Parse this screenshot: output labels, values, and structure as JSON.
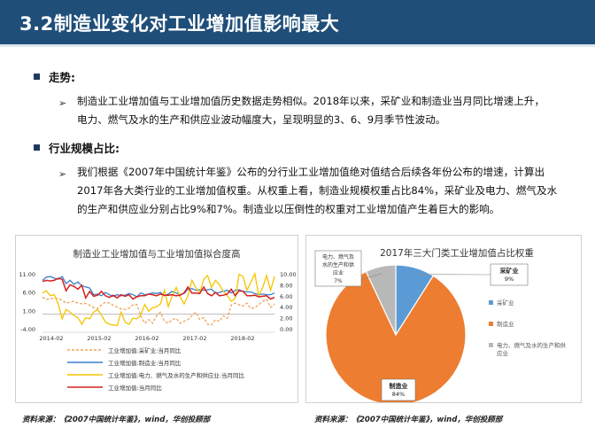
{
  "title": "3.2制造业变化对工业增加值影响最大",
  "sections": [
    {
      "heading": "走势",
      "colon": ":",
      "lines": [
        "制造业工业增加值与工业增加值历史数据走势相似。2018年以来，采矿业和制造业当月同比增速上升，",
        "电力、燃气及水的生产和供应业波动幅度大，呈现明显的3、6、9月季节性波动。"
      ]
    },
    {
      "heading": "行业规模占比",
      "colon": ":",
      "lines": [
        "我们根据《2007年中国统计年鉴》公布的分行业工业增加值绝对值结合后续各年份公布的增速，计算出",
        "2017年各大类行业的工业增加值权重。从权重上看，制造业规模权重占比84%，采矿业及电力、燃气及水",
        "的生产和供应业分别占比9%和7%。制造业以压倒性的权重对工业增加值产生着巨大的影响。"
      ]
    }
  ],
  "chart_data": [
    {
      "type": "line",
      "title": "制造业工业增加值与工业增加值拟合度高",
      "x_ticks": [
        "2014-02",
        "2015-02",
        "2016-02",
        "2017-02",
        "2018-02"
      ],
      "left_axis_ticks": [
        "11.00",
        "6.00",
        "1.00",
        "-4.00"
      ],
      "right_axis_ticks": [
        "10.00",
        "8.00",
        "6.00",
        "4.00",
        "2.00",
        "0.00"
      ],
      "left_ylim": [
        -4,
        11
      ],
      "right_ylim": [
        0,
        10
      ],
      "grid": false,
      "legend_position": "bottom",
      "colors": {
        "mining": "#f0a35a",
        "manufacturing": "#3c7fc9",
        "utilities": "#f5c400",
        "total": "#d62020"
      },
      "series": [
        {
          "name": "工业增加值:采矿业:当月同比",
          "key": "mining",
          "axis": "left",
          "dashed": true,
          "values": [
            4.6,
            4.0,
            4.2,
            4.4,
            4.2,
            3.8,
            3.0,
            3.2,
            3.5,
            3.0,
            2.8,
            2.9,
            2.4,
            1.8,
            1.5,
            2.5,
            3.2,
            3.0,
            2.4,
            1.9,
            1.4,
            1.2,
            1.6,
            2.5,
            2.6,
            -0.6,
            -2.5,
            -1.5,
            -2.5,
            -0.5,
            0.5,
            -2.0,
            -2.5,
            -1.5,
            -1.2,
            -2.5,
            -2.0,
            -1.5,
            -0.5,
            0.5,
            -1.5,
            -1.0,
            -2.8,
            -3.0,
            -1.5,
            -2.0,
            -0.5,
            -1.2,
            2.5,
            3.0,
            2.5,
            2.2,
            3.0,
            1.5,
            1.8,
            2.5,
            3.5,
            4.0,
            1.8,
            2.8
          ]
        },
        {
          "name": "工业增加值:制造业:当月同比",
          "key": "manufacturing",
          "axis": "right",
          "dashed": false,
          "values": [
            8.8,
            9.4,
            9.5,
            9.2,
            9.0,
            9.5,
            8.2,
            8.8,
            8.1,
            8.5,
            7.8,
            7.6,
            7.4,
            6.2,
            6.3,
            6.0,
            6.6,
            6.2,
            5.9,
            6.2,
            6.0,
            6.1,
            6.4,
            6.2,
            5.8,
            6.5,
            6.2,
            6.3,
            6.5,
            6.4,
            6.6,
            6.0,
            6.3,
            6.8,
            6.5,
            6.2,
            6.4,
            7.2,
            7.3,
            7.0,
            7.1,
            7.0,
            7.1,
            7.2,
            6.5,
            6.6,
            6.8,
            7.0,
            6.5,
            7.0,
            7.1,
            6.8,
            6.7,
            6.7,
            6.4,
            6.2,
            6.3,
            6.2,
            6.2,
            6.5
          ]
        },
        {
          "name": "工业增加值:电力、燃气及水的生产和供应业:当月同比",
          "key": "utilities",
          "axis": "right",
          "dashed": false,
          "values": [
            6.5,
            6.9,
            6.0,
            6.2,
            4.5,
            1.8,
            3.5,
            3.0,
            2.4,
            2.0,
            0.8,
            2.0,
            1.8,
            3.0,
            3.5,
            2.5,
            1.2,
            0.8,
            0.7,
            0.6,
            3.0,
            1.2,
            0.8,
            1.9,
            1.8,
            2.5,
            4.4,
            3.2,
            3.8,
            4.0,
            4.5,
            7.0,
            4.0,
            6.0,
            7.5,
            5.8,
            4.5,
            6.0,
            8.8,
            7.5,
            6.5,
            9.0,
            9.7,
            7.5,
            8.8,
            8.0,
            6.8,
            6.0,
            5.0,
            5.5,
            9.9,
            9.5,
            7.0,
            8.5,
            10.0,
            6.0,
            7.5,
            9.7,
            7.0,
            9.5
          ]
        },
        {
          "name": "工业增加值:当月同比",
          "key": "total",
          "axis": "right",
          "dashed": false,
          "values": [
            8.6,
            8.8,
            8.7,
            8.8,
            9.2,
            9.0,
            6.9,
            8.0,
            7.7,
            7.2,
            7.9,
            5.6,
            6.8,
            5.9,
            6.1,
            6.8,
            6.0,
            5.7,
            6.1,
            5.6,
            6.2,
            5.9,
            6.2,
            5.4,
            5.8,
            6.0,
            6.0,
            6.3,
            6.2,
            6.0,
            6.3,
            6.1,
            6.1,
            6.2,
            6.0,
            6.1,
            6.5,
            7.6,
            6.5,
            6.5,
            6.4,
            7.6,
            6.4,
            6.0,
            6.6,
            6.0,
            6.1,
            6.3,
            7.2,
            6.0,
            6.9,
            6.8,
            6.0,
            6.0,
            6.1,
            5.8,
            5.9,
            6.0,
            5.4,
            5.7
          ]
        }
      ]
    },
    {
      "type": "pie",
      "title": "2017年三大门类工业增加值占比权重",
      "legend_position": "right",
      "slices": [
        {
          "name": "采矿业",
          "value": 9,
          "label": "9%",
          "color": "#5b9bd5"
        },
        {
          "name": "制造业",
          "value": 84,
          "label": "84%",
          "color": "#ed7d31"
        },
        {
          "name": "电力、燃气及水的生产和供应业",
          "value": 7,
          "label": "7%",
          "color": "#b8b8b8"
        }
      ]
    }
  ],
  "sources": [
    "资料来源：《2007中国统计年鉴》，wind，华创投顾部",
    "资料来源：《2007中国统计年鉴》，wind，华创投顾部"
  ]
}
